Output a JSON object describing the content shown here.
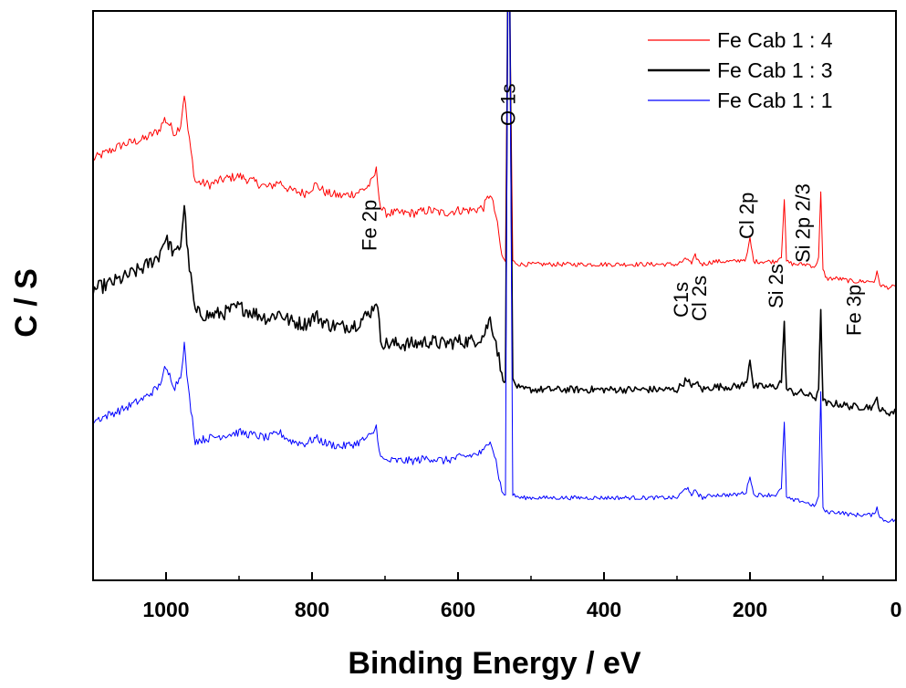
{
  "chart_data": {
    "type": "line",
    "xlabel": "Binding Energy / eV",
    "ylabel": "C / S",
    "xlim": [
      1100,
      0
    ],
    "x_reversed": true,
    "xticks": [
      1000,
      800,
      600,
      400,
      200,
      0
    ],
    "y_tick_labels_shown": false,
    "ylim": [
      0,
      100
    ],
    "grid": false,
    "legend_position": "top-right",
    "series": [
      {
        "name": "Fe Cab 1 : 4",
        "color": "#ff0000",
        "x": [
          1100,
          1060,
          1030,
          1010,
          1002,
          995,
          988,
          980,
          975,
          970,
          960,
          940,
          920,
          900,
          880,
          860,
          845,
          830,
          810,
          795,
          780,
          760,
          740,
          725,
          718,
          712,
          706,
          700,
          680,
          660,
          640,
          620,
          600,
          580,
          565,
          556,
          548,
          540,
          535,
          532,
          529,
          525,
          515,
          490,
          450,
          400,
          350,
          300,
          285,
          280,
          275,
          270,
          265,
          250,
          220,
          205,
          200,
          195,
          180,
          165,
          157,
          153,
          150,
          140,
          130,
          120,
          110,
          106,
          103,
          100,
          95,
          80,
          60,
          40,
          30,
          26,
          22,
          15,
          5,
          0
        ],
        "y": [
          74,
          76.5,
          77.5,
          79,
          81,
          80,
          78.5,
          80,
          85.5,
          79,
          70,
          69.5,
          70.5,
          71,
          70,
          69,
          70,
          68.5,
          68,
          69.5,
          68,
          67.5,
          68,
          69,
          70,
          72,
          65.5,
          64.5,
          64.5,
          64.5,
          65,
          64.5,
          65,
          65,
          65.5,
          68,
          64,
          57,
          56,
          100,
          100,
          56,
          55.5,
          55.5,
          55.5,
          55.5,
          55.5,
          55.5,
          56.5,
          55.5,
          57,
          56,
          55.5,
          56,
          56,
          56.5,
          60,
          56,
          56,
          56,
          57,
          67,
          56,
          55.5,
          55.5,
          55.5,
          55,
          57,
          68,
          54.5,
          53,
          53,
          52.5,
          52.5,
          52.5,
          54,
          52,
          51.5,
          51.5,
          51.5
        ]
      },
      {
        "name": "Fe Cab 1 : 3",
        "color": "#000000",
        "x": [
          1100,
          1060,
          1030,
          1010,
          1002,
          995,
          988,
          980,
          975,
          970,
          960,
          940,
          920,
          900,
          880,
          860,
          845,
          830,
          810,
          795,
          780,
          760,
          740,
          725,
          718,
          712,
          706,
          700,
          680,
          660,
          640,
          620,
          600,
          580,
          565,
          556,
          548,
          540,
          535,
          532,
          529,
          525,
          515,
          490,
          450,
          400,
          350,
          300,
          285,
          280,
          275,
          270,
          265,
          250,
          220,
          205,
          200,
          195,
          180,
          165,
          157,
          153,
          150,
          140,
          130,
          120,
          110,
          106,
          103,
          100,
          95,
          80,
          60,
          40,
          30,
          26,
          22,
          15,
          5,
          0
        ],
        "y": [
          51,
          53,
          55,
          57,
          60,
          59,
          57,
          59,
          66,
          57,
          47,
          46.5,
          47,
          48,
          47,
          46,
          47,
          45.5,
          45,
          46.5,
          45,
          44.5,
          45,
          46.5,
          47.5,
          49.5,
          42.5,
          41.5,
          41.5,
          41.5,
          42,
          41.5,
          42,
          42,
          43,
          46,
          42,
          36,
          35,
          100,
          100,
          35,
          33.5,
          33.5,
          33.5,
          33.5,
          33.5,
          33.5,
          35.5,
          33.5,
          35,
          34,
          33.5,
          34,
          34,
          34.5,
          39,
          34,
          34,
          34,
          35,
          45,
          33.5,
          33,
          33,
          32.5,
          32,
          34,
          47,
          31.5,
          31,
          31,
          30.5,
          30.5,
          30.5,
          32,
          30,
          29.5,
          29.5,
          29.5
        ]
      },
      {
        "name": "Fe Cab 1 : 1",
        "color": "#0000ff",
        "x": [
          1100,
          1060,
          1030,
          1010,
          1002,
          995,
          988,
          980,
          975,
          970,
          960,
          940,
          920,
          900,
          880,
          860,
          845,
          830,
          810,
          795,
          780,
          760,
          740,
          725,
          718,
          712,
          706,
          700,
          680,
          660,
          640,
          620,
          600,
          580,
          565,
          556,
          548,
          540,
          535,
          532,
          529,
          525,
          515,
          490,
          450,
          400,
          350,
          300,
          285,
          280,
          275,
          270,
          265,
          250,
          220,
          205,
          200,
          195,
          180,
          165,
          157,
          153,
          150,
          140,
          130,
          120,
          110,
          106,
          103,
          100,
          95,
          80,
          60,
          40,
          30,
          26,
          22,
          15,
          5,
          0
        ],
        "y": [
          28,
          30,
          32,
          34,
          37,
          36,
          34,
          36,
          41.5,
          34,
          24.5,
          25,
          25.5,
          26,
          25.5,
          25,
          26,
          24.5,
          24,
          25,
          24,
          23.5,
          24,
          25,
          25.5,
          27,
          21.5,
          21,
          21,
          21,
          21.5,
          21,
          21.5,
          22,
          22.5,
          25,
          21,
          15.5,
          15,
          100,
          100,
          15,
          14.5,
          14.5,
          14.5,
          14.5,
          14.5,
          14.5,
          16.5,
          14.5,
          16,
          15,
          14.5,
          15,
          15,
          15.5,
          18.5,
          15,
          15,
          15,
          16,
          28,
          14.5,
          14,
          14,
          13.5,
          13,
          15,
          33,
          12.5,
          12,
          12,
          11.5,
          11.5,
          11.5,
          13,
          11,
          10.5,
          10.5,
          10.5
        ]
      }
    ],
    "annotations": [
      {
        "text": "O 1s",
        "x": 532
      },
      {
        "text": "Fe 2p",
        "x": 722
      },
      {
        "text": "C1s",
        "x": 295
      },
      {
        "text": "Cl 2s",
        "x": 270
      },
      {
        "text": "Si 2s",
        "x": 165
      },
      {
        "text": "Cl 2p",
        "x": 205
      },
      {
        "text": "Si 2p 2/3",
        "x": 128
      },
      {
        "text": "Fe 3p",
        "x": 58
      }
    ]
  }
}
